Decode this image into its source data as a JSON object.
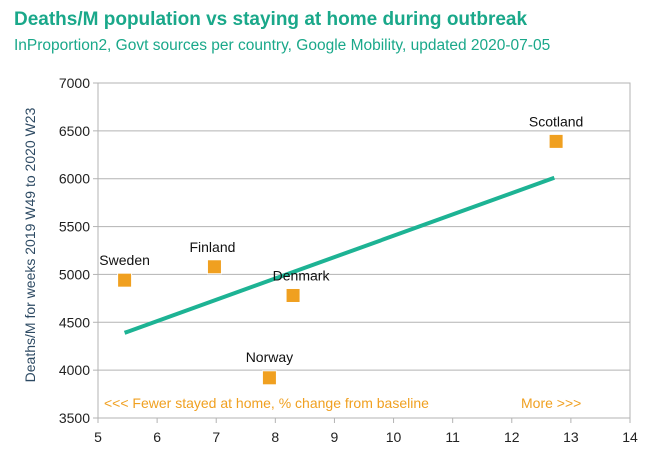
{
  "chart_data": {
    "type": "scatter",
    "title": "Deaths/M population vs staying at home during outbreak",
    "subtitle": "InProportion2, Govt sources per country, Google Mobility, updated 2020-07-05",
    "xlabel": "",
    "ylabel": "Deaths/M for weeks 2019 W49 to 2020 W23",
    "xlim": [
      5,
      14
    ],
    "ylim": [
      3500,
      7000
    ],
    "x_ticks": [
      5,
      6,
      7,
      8,
      9,
      10,
      11,
      12,
      13,
      14
    ],
    "y_ticks": [
      3500,
      4000,
      4500,
      5000,
      5500,
      6000,
      6500,
      7000
    ],
    "grid": "horizontal",
    "points": [
      {
        "label": "Sweden",
        "x": 5.45,
        "y": 4940
      },
      {
        "label": "Finland",
        "x": 6.97,
        "y": 5080
      },
      {
        "label": "Denmark",
        "x": 8.3,
        "y": 4780
      },
      {
        "label": "Norway",
        "x": 7.9,
        "y": 3920
      },
      {
        "label": "Scotland",
        "x": 12.75,
        "y": 6390
      }
    ],
    "trendline": {
      "x": [
        5.45,
        12.72
      ],
      "y": [
        4390,
        6010
      ]
    },
    "annotations": {
      "left": "<<< Fewer stayed at home, % change from baseline",
      "right": "More >>>"
    },
    "colors": {
      "title": "#1aa88a",
      "marker": "#f0a020",
      "marker_edge": "#ffffff",
      "trendline": "#1db394",
      "annotation": "#f0a020",
      "grid": "#b3b3b3",
      "axis": "#b3b3b3"
    }
  }
}
